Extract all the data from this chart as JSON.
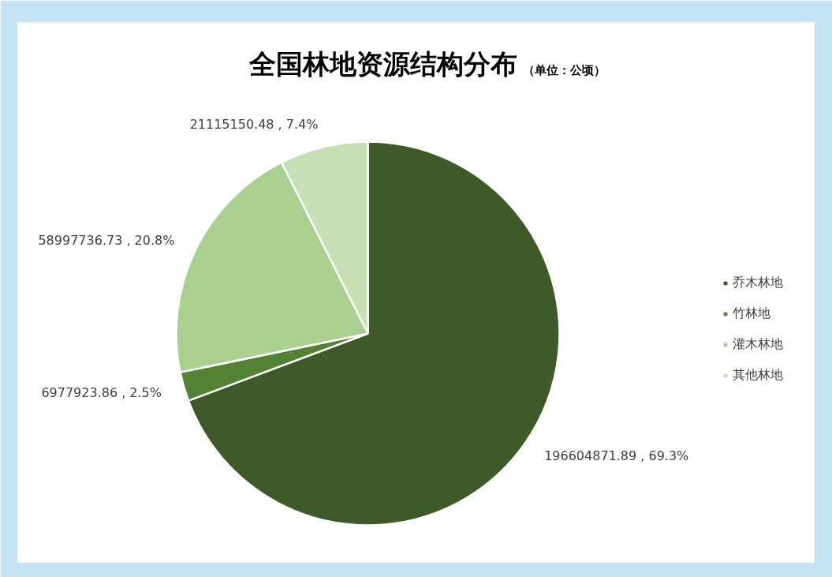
{
  "chart_data": {
    "type": "pie",
    "title": "全国林地资源结构分布",
    "subtitle": "（单位：公顷）",
    "categories": [
      "乔木林地",
      "竹林地",
      "灌木林地",
      "其他林地"
    ],
    "values": [
      196604871.89,
      6977923.86,
      58997736.73,
      21115150.48
    ],
    "colors": [
      "#3d5a28",
      "#548235",
      "#a9d08e",
      "#c6dfb4"
    ],
    "value_labels": [
      "196604871.89 , 69.3%",
      "6977923.86 , 2.5%",
      "58997736.73 , 20.8%",
      "21115150.48 , 7.4%"
    ],
    "legend": "right"
  }
}
